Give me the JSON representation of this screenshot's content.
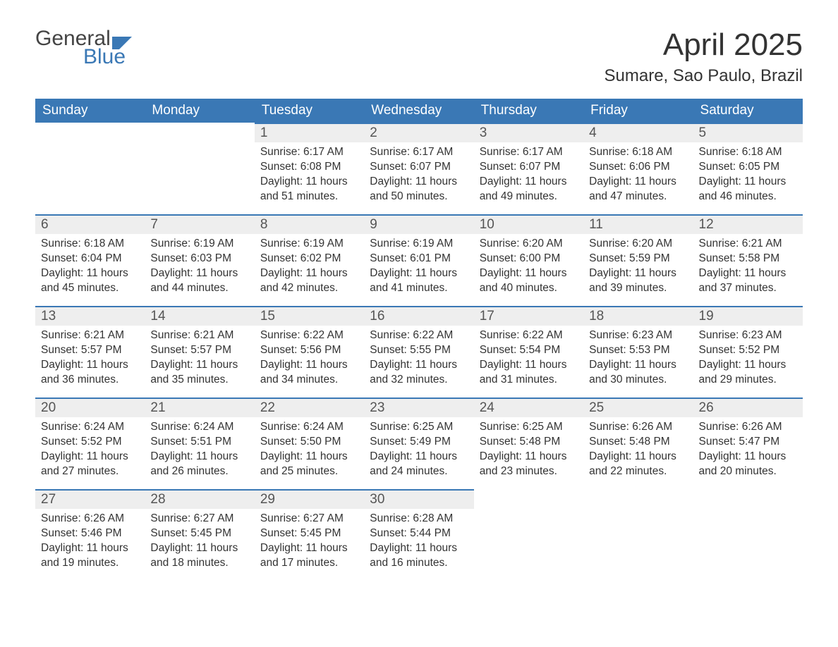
{
  "logo": {
    "word1": "General",
    "word2": "Blue"
  },
  "title": "April 2025",
  "subtitle": "Sumare, Sao Paulo, Brazil",
  "colors": {
    "header_bg": "#3a78b5",
    "header_text": "#ffffff",
    "daynum_bg": "#eeeeee",
    "daynum_border": "#3a78b5",
    "body_text": "#333333",
    "logo_gray": "#444444",
    "logo_blue": "#3a78b5",
    "page_bg": "#ffffff"
  },
  "typography": {
    "title_fontsize": 44,
    "subtitle_fontsize": 24,
    "header_fontsize": 19,
    "daynum_fontsize": 19,
    "cell_fontsize": 15.5,
    "font_family": "Segoe UI"
  },
  "layout": {
    "columns": 7,
    "rows": 5,
    "first_day_column_index": 2
  },
  "weekdays": [
    "Sunday",
    "Monday",
    "Tuesday",
    "Wednesday",
    "Thursday",
    "Friday",
    "Saturday"
  ],
  "days": [
    {
      "n": "1",
      "sunrise": "Sunrise: 6:17 AM",
      "sunset": "Sunset: 6:08 PM",
      "dl1": "Daylight: 11 hours",
      "dl2": "and 51 minutes."
    },
    {
      "n": "2",
      "sunrise": "Sunrise: 6:17 AM",
      "sunset": "Sunset: 6:07 PM",
      "dl1": "Daylight: 11 hours",
      "dl2": "and 50 minutes."
    },
    {
      "n": "3",
      "sunrise": "Sunrise: 6:17 AM",
      "sunset": "Sunset: 6:07 PM",
      "dl1": "Daylight: 11 hours",
      "dl2": "and 49 minutes."
    },
    {
      "n": "4",
      "sunrise": "Sunrise: 6:18 AM",
      "sunset": "Sunset: 6:06 PM",
      "dl1": "Daylight: 11 hours",
      "dl2": "and 47 minutes."
    },
    {
      "n": "5",
      "sunrise": "Sunrise: 6:18 AM",
      "sunset": "Sunset: 6:05 PM",
      "dl1": "Daylight: 11 hours",
      "dl2": "and 46 minutes."
    },
    {
      "n": "6",
      "sunrise": "Sunrise: 6:18 AM",
      "sunset": "Sunset: 6:04 PM",
      "dl1": "Daylight: 11 hours",
      "dl2": "and 45 minutes."
    },
    {
      "n": "7",
      "sunrise": "Sunrise: 6:19 AM",
      "sunset": "Sunset: 6:03 PM",
      "dl1": "Daylight: 11 hours",
      "dl2": "and 44 minutes."
    },
    {
      "n": "8",
      "sunrise": "Sunrise: 6:19 AM",
      "sunset": "Sunset: 6:02 PM",
      "dl1": "Daylight: 11 hours",
      "dl2": "and 42 minutes."
    },
    {
      "n": "9",
      "sunrise": "Sunrise: 6:19 AM",
      "sunset": "Sunset: 6:01 PM",
      "dl1": "Daylight: 11 hours",
      "dl2": "and 41 minutes."
    },
    {
      "n": "10",
      "sunrise": "Sunrise: 6:20 AM",
      "sunset": "Sunset: 6:00 PM",
      "dl1": "Daylight: 11 hours",
      "dl2": "and 40 minutes."
    },
    {
      "n": "11",
      "sunrise": "Sunrise: 6:20 AM",
      "sunset": "Sunset: 5:59 PM",
      "dl1": "Daylight: 11 hours",
      "dl2": "and 39 minutes."
    },
    {
      "n": "12",
      "sunrise": "Sunrise: 6:21 AM",
      "sunset": "Sunset: 5:58 PM",
      "dl1": "Daylight: 11 hours",
      "dl2": "and 37 minutes."
    },
    {
      "n": "13",
      "sunrise": "Sunrise: 6:21 AM",
      "sunset": "Sunset: 5:57 PM",
      "dl1": "Daylight: 11 hours",
      "dl2": "and 36 minutes."
    },
    {
      "n": "14",
      "sunrise": "Sunrise: 6:21 AM",
      "sunset": "Sunset: 5:57 PM",
      "dl1": "Daylight: 11 hours",
      "dl2": "and 35 minutes."
    },
    {
      "n": "15",
      "sunrise": "Sunrise: 6:22 AM",
      "sunset": "Sunset: 5:56 PM",
      "dl1": "Daylight: 11 hours",
      "dl2": "and 34 minutes."
    },
    {
      "n": "16",
      "sunrise": "Sunrise: 6:22 AM",
      "sunset": "Sunset: 5:55 PM",
      "dl1": "Daylight: 11 hours",
      "dl2": "and 32 minutes."
    },
    {
      "n": "17",
      "sunrise": "Sunrise: 6:22 AM",
      "sunset": "Sunset: 5:54 PM",
      "dl1": "Daylight: 11 hours",
      "dl2": "and 31 minutes."
    },
    {
      "n": "18",
      "sunrise": "Sunrise: 6:23 AM",
      "sunset": "Sunset: 5:53 PM",
      "dl1": "Daylight: 11 hours",
      "dl2": "and 30 minutes."
    },
    {
      "n": "19",
      "sunrise": "Sunrise: 6:23 AM",
      "sunset": "Sunset: 5:52 PM",
      "dl1": "Daylight: 11 hours",
      "dl2": "and 29 minutes."
    },
    {
      "n": "20",
      "sunrise": "Sunrise: 6:24 AM",
      "sunset": "Sunset: 5:52 PM",
      "dl1": "Daylight: 11 hours",
      "dl2": "and 27 minutes."
    },
    {
      "n": "21",
      "sunrise": "Sunrise: 6:24 AM",
      "sunset": "Sunset: 5:51 PM",
      "dl1": "Daylight: 11 hours",
      "dl2": "and 26 minutes."
    },
    {
      "n": "22",
      "sunrise": "Sunrise: 6:24 AM",
      "sunset": "Sunset: 5:50 PM",
      "dl1": "Daylight: 11 hours",
      "dl2": "and 25 minutes."
    },
    {
      "n": "23",
      "sunrise": "Sunrise: 6:25 AM",
      "sunset": "Sunset: 5:49 PM",
      "dl1": "Daylight: 11 hours",
      "dl2": "and 24 minutes."
    },
    {
      "n": "24",
      "sunrise": "Sunrise: 6:25 AM",
      "sunset": "Sunset: 5:48 PM",
      "dl1": "Daylight: 11 hours",
      "dl2": "and 23 minutes."
    },
    {
      "n": "25",
      "sunrise": "Sunrise: 6:26 AM",
      "sunset": "Sunset: 5:48 PM",
      "dl1": "Daylight: 11 hours",
      "dl2": "and 22 minutes."
    },
    {
      "n": "26",
      "sunrise": "Sunrise: 6:26 AM",
      "sunset": "Sunset: 5:47 PM",
      "dl1": "Daylight: 11 hours",
      "dl2": "and 20 minutes."
    },
    {
      "n": "27",
      "sunrise": "Sunrise: 6:26 AM",
      "sunset": "Sunset: 5:46 PM",
      "dl1": "Daylight: 11 hours",
      "dl2": "and 19 minutes."
    },
    {
      "n": "28",
      "sunrise": "Sunrise: 6:27 AM",
      "sunset": "Sunset: 5:45 PM",
      "dl1": "Daylight: 11 hours",
      "dl2": "and 18 minutes."
    },
    {
      "n": "29",
      "sunrise": "Sunrise: 6:27 AM",
      "sunset": "Sunset: 5:45 PM",
      "dl1": "Daylight: 11 hours",
      "dl2": "and 17 minutes."
    },
    {
      "n": "30",
      "sunrise": "Sunrise: 6:28 AM",
      "sunset": "Sunset: 5:44 PM",
      "dl1": "Daylight: 11 hours",
      "dl2": "and 16 minutes."
    }
  ]
}
